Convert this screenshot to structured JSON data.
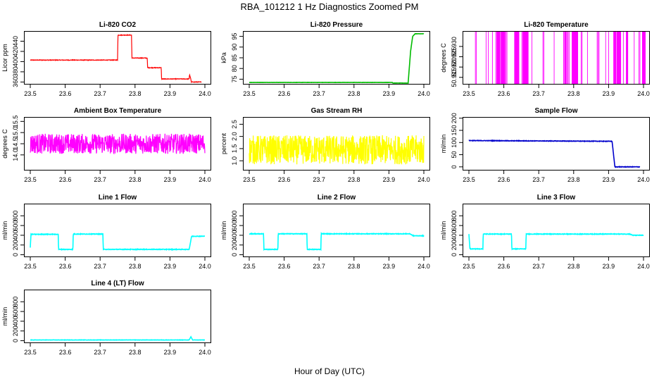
{
  "figure": {
    "title": "RBA_101212  1 Hz Diagnostics Zoomed PM",
    "xlabel": "Hour of Day (UTC)"
  },
  "chart_data": [
    {
      "type": "line",
      "title": "Li-820 CO2",
      "ylabel": "Licor ppm",
      "color": "#ff0000",
      "xlim": [
        23.5,
        24.0
      ],
      "ylim": [
        355,
        460
      ],
      "xticks": [
        "23.5",
        "23.6",
        "23.7",
        "23.8",
        "23.9",
        "24.0"
      ],
      "yticks": [
        360,
        380,
        400,
        420,
        440
      ],
      "noise": 0.6,
      "series": [
        {
          "x": [
            23.5,
            23.75,
            23.751,
            23.79,
            23.791,
            23.835,
            23.836,
            23.875,
            23.876,
            23.955,
            23.956,
            23.96,
            23.961,
            23.99
          ],
          "y": [
            403,
            403,
            452,
            452,
            407,
            407,
            388,
            388,
            366,
            366,
            375,
            365,
            360,
            360
          ]
        }
      ]
    },
    {
      "type": "line",
      "title": "Li-820 Pressure",
      "ylabel": "kPa",
      "color": "#00bb00",
      "xlim": [
        23.5,
        24.0
      ],
      "ylim": [
        72.5,
        97.5
      ],
      "xticks": [
        "23.5",
        "23.6",
        "23.7",
        "23.8",
        "23.9",
        "24.0"
      ],
      "yticks": [
        75,
        80,
        85,
        90,
        95
      ],
      "noise": 0.05,
      "series": [
        {
          "x": [
            23.5,
            23.91,
            23.911,
            23.955,
            23.962,
            23.968,
            23.975,
            24.0
          ],
          "y": [
            73.5,
            73.5,
            73.2,
            73.2,
            88,
            95,
            96.2,
            96.2
          ]
        }
      ]
    },
    {
      "type": "spikes",
      "title": "Li-820 Temperature",
      "ylabel": "degrees C",
      "color": "#ff00ff",
      "xlim": [
        23.5,
        24.0
      ],
      "ylim": [
        50.9115,
        50.9375
      ],
      "xticks": [
        "23.5",
        "23.6",
        "23.7",
        "23.8",
        "23.9",
        "24.0"
      ],
      "yticks": [
        50.915,
        50.92,
        50.925,
        50.93
      ],
      "low": 50.9115,
      "high": 50.9375,
      "density": 0.55
    },
    {
      "type": "line",
      "title": "Ambient Box Temperature",
      "ylabel": "degrees C",
      "color": "#ff00ff",
      "xlim": [
        23.5,
        24.0
      ],
      "ylim": [
        13.3,
        15.7
      ],
      "xticks": [
        "23.5",
        "23.6",
        "23.7",
        "23.8",
        "23.9",
        "24.0"
      ],
      "yticks": [
        14.0,
        14.5,
        15.0,
        15.5
      ],
      "noise": 0.45,
      "series": [
        {
          "x": [
            23.5,
            24.0
          ],
          "y": [
            14.5,
            14.5
          ]
        }
      ]
    },
    {
      "type": "line",
      "title": "Gas Stream RH",
      "ylabel": "percent",
      "color": "#ffff00",
      "xlim": [
        23.5,
        24.0
      ],
      "ylim": [
        0.6,
        2.8
      ],
      "xticks": [
        "23.5",
        "23.6",
        "23.7",
        "23.8",
        "23.9",
        "24.0"
      ],
      "yticks": [
        1.0,
        1.5,
        2.0,
        2.5
      ],
      "noise": 0.6,
      "series": [
        {
          "x": [
            23.5,
            24.0
          ],
          "y": [
            1.45,
            1.45
          ]
        }
      ]
    },
    {
      "type": "line",
      "title": "Sample Flow",
      "ylabel": "ml/min",
      "color": "#0000cc",
      "xlim": [
        23.5,
        24.0
      ],
      "ylim": [
        -15,
        205
      ],
      "xticks": [
        "23.5",
        "23.6",
        "23.7",
        "23.8",
        "23.9",
        "24.0"
      ],
      "yticks": [
        0,
        50,
        100,
        150,
        200
      ],
      "noise": 1.0,
      "series": [
        {
          "x": [
            23.5,
            23.91,
            23.918,
            23.99
          ],
          "y": [
            108,
            105,
            0,
            0
          ]
        }
      ]
    },
    {
      "type": "line",
      "title": "Line 1 Flow",
      "ylabel": "ml/min",
      "color": "#00ffff",
      "xlim": [
        23.5,
        24.0
      ],
      "ylim": [
        -50,
        1050
      ],
      "xticks": [
        "23.5",
        "23.6",
        "23.7",
        "23.8",
        "23.9",
        "24.0"
      ],
      "yticks": [
        0,
        200,
        400,
        600,
        800
      ],
      "noise": 6,
      "series": [
        {
          "x": [
            23.5,
            23.502,
            23.58,
            23.581,
            23.622,
            23.623,
            23.708,
            23.709,
            23.955,
            23.962,
            24.0
          ],
          "y": [
            150,
            420,
            420,
            110,
            110,
            425,
            425,
            110,
            110,
            380,
            380
          ]
        }
      ]
    },
    {
      "type": "line",
      "title": "Line 2 Flow",
      "ylabel": "ml/min",
      "color": "#00ffff",
      "xlim": [
        23.5,
        24.0
      ],
      "ylim": [
        -50,
        1050
      ],
      "xticks": [
        "23.5",
        "23.6",
        "23.7",
        "23.8",
        "23.9",
        "24.0"
      ],
      "yticks": [
        0,
        200,
        400,
        600,
        800
      ],
      "noise": 6,
      "series": [
        {
          "x": [
            23.5,
            23.541,
            23.542,
            23.582,
            23.583,
            23.665,
            23.666,
            23.705,
            23.706,
            23.96,
            23.97,
            24.0
          ],
          "y": [
            430,
            430,
            110,
            110,
            430,
            430,
            110,
            110,
            430,
            430,
            390,
            390
          ]
        }
      ]
    },
    {
      "type": "line",
      "title": "Line 3 Flow",
      "ylabel": "ml/min",
      "color": "#00ffff",
      "xlim": [
        23.5,
        24.0
      ],
      "ylim": [
        -50,
        1050
      ],
      "xticks": [
        "23.5",
        "23.6",
        "23.7",
        "23.8",
        "23.9",
        "24.0"
      ],
      "yticks": [
        0,
        200,
        400,
        600,
        800
      ],
      "noise": 6,
      "series": [
        {
          "x": [
            23.5,
            23.503,
            23.54,
            23.541,
            23.622,
            23.623,
            23.663,
            23.664,
            23.96,
            23.97,
            24.0
          ],
          "y": [
            420,
            120,
            120,
            425,
            425,
            120,
            120,
            425,
            425,
            400,
            400
          ]
        }
      ]
    },
    {
      "type": "line",
      "title": "Line 4 (LT) Flow",
      "ylabel": "ml/min",
      "color": "#00ffff",
      "xlim": [
        23.5,
        24.0
      ],
      "ylim": [
        -50,
        1050
      ],
      "xticks": [
        "23.5",
        "23.6",
        "23.7",
        "23.8",
        "23.9",
        "24.0"
      ],
      "yticks": [
        0,
        200,
        400,
        600,
        800
      ],
      "noise": 3,
      "series": [
        {
          "x": [
            23.5,
            23.955,
            23.96,
            23.965,
            24.0
          ],
          "y": [
            15,
            15,
            80,
            15,
            15
          ]
        }
      ]
    }
  ]
}
